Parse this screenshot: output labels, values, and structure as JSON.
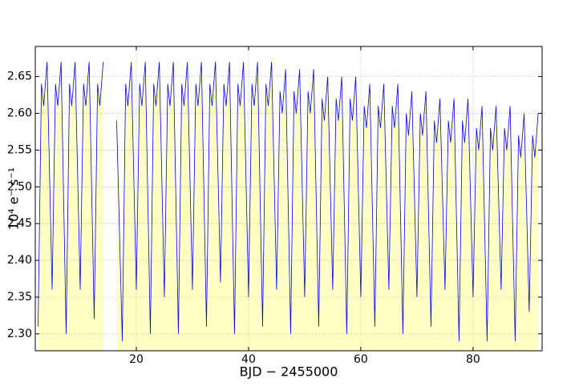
{
  "chart_data": {
    "type": "line",
    "xlabel": "BJD − 2455000",
    "ylabel": "10⁴  e⁻  s⁻¹",
    "x": [
      2.5,
      3.1,
      3.5,
      4.1,
      5,
      5.6,
      6,
      6.6,
      7.5,
      8.1,
      8.5,
      9.1,
      10,
      10.6,
      11,
      11.6,
      12.5,
      13.1,
      13.5,
      14.1,
      15.3,
      16.5,
      17.5,
      18.1,
      18.5,
      19.1,
      20,
      20.6,
      21,
      21.6,
      22.5,
      23.1,
      23.5,
      24.1,
      25,
      25.6,
      26,
      26.6,
      27.5,
      28.1,
      28.5,
      29.1,
      30,
      30.6,
      31,
      31.6,
      32.5,
      33.1,
      33.5,
      34.1,
      35,
      35.6,
      36,
      36.6,
      37.5,
      38.1,
      38.5,
      39.1,
      40,
      40.6,
      41,
      41.6,
      42.5,
      43.1,
      43.5,
      44.1,
      45,
      45.6,
      46,
      46.6,
      47.5,
      48.1,
      48.5,
      49.1,
      50,
      50.6,
      51,
      51.6,
      52.5,
      53.1,
      53.5,
      54.1,
      55,
      55.6,
      56,
      56.6,
      57.5,
      58.1,
      58.5,
      59.1,
      60,
      60.6,
      61,
      61.6,
      62.5,
      63.1,
      63.5,
      64.1,
      65,
      65.6,
      66,
      66.6,
      67.5,
      68.1,
      68.5,
      69.1,
      70,
      70.6,
      71,
      71.6,
      72.5,
      73.1,
      73.5,
      74.1,
      75,
      75.6,
      76,
      76.6,
      77.5,
      78.1,
      78.5,
      79.1,
      80,
      80.6,
      81,
      81.6,
      82.5,
      83.1,
      83.5,
      84.1,
      85,
      85.6,
      86,
      86.6,
      87.5,
      88.1,
      88.5,
      89.1,
      90,
      90.6,
      91,
      91.6
    ],
    "values": [
      2.31,
      2.64,
      2.61,
      2.67,
      2.36,
      2.64,
      2.61,
      2.67,
      2.3,
      2.64,
      2.61,
      2.67,
      2.36,
      2.64,
      2.61,
      2.67,
      2.32,
      2.64,
      2.61,
      2.67,
      null,
      2.59,
      2.29,
      2.64,
      2.61,
      2.67,
      2.36,
      2.64,
      2.61,
      2.67,
      2.3,
      2.64,
      2.61,
      2.67,
      2.35,
      2.64,
      2.61,
      2.67,
      2.3,
      2.64,
      2.61,
      2.67,
      2.36,
      2.64,
      2.61,
      2.67,
      2.31,
      2.64,
      2.61,
      2.67,
      2.37,
      2.64,
      2.61,
      2.67,
      2.3,
      2.64,
      2.61,
      2.67,
      2.35,
      2.64,
      2.61,
      2.67,
      2.31,
      2.64,
      2.61,
      2.67,
      2.36,
      2.63,
      2.6,
      2.66,
      2.3,
      2.63,
      2.6,
      2.66,
      2.35,
      2.63,
      2.6,
      2.66,
      2.31,
      2.62,
      2.59,
      2.65,
      2.36,
      2.62,
      2.59,
      2.65,
      2.3,
      2.62,
      2.59,
      2.65,
      2.35,
      2.61,
      2.58,
      2.64,
      2.31,
      2.61,
      2.58,
      2.64,
      2.36,
      2.61,
      2.58,
      2.64,
      2.3,
      2.6,
      2.57,
      2.63,
      2.35,
      2.6,
      2.57,
      2.63,
      2.31,
      2.59,
      2.56,
      2.62,
      2.36,
      2.59,
      2.56,
      2.62,
      2.29,
      2.59,
      2.56,
      2.62,
      2.35,
      2.58,
      2.55,
      2.61,
      2.29,
      2.58,
      2.55,
      2.61,
      2.36,
      2.58,
      2.55,
      2.61,
      2.29,
      2.57,
      2.54,
      2.6,
      2.33,
      2.57,
      2.54,
      2.6
    ],
    "color": "#0000ff",
    "fill_color": "#ffffc4",
    "xlim": [
      2.0,
      92.3
    ],
    "ylim": [
      2.277,
      2.691
    ],
    "xticks": [
      20,
      40,
      60,
      80
    ],
    "yticks": [
      {
        "value": 2.3,
        "label": "2.30"
      },
      {
        "value": 2.35,
        "label": "2.35"
      },
      {
        "value": 2.4,
        "label": "2.40"
      },
      {
        "value": 2.45,
        "label": "2.45"
      },
      {
        "value": 2.5,
        "label": "2.50"
      },
      {
        "value": 2.55,
        "label": "2.55"
      },
      {
        "value": 2.6,
        "label": "2.60"
      },
      {
        "value": 2.65,
        "label": "2.65"
      }
    ],
    "grid": true
  }
}
